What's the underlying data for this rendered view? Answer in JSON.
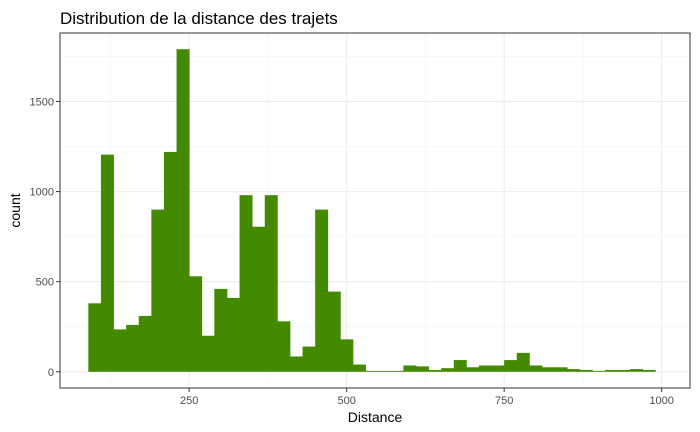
{
  "chart_data": {
    "type": "bar",
    "title": "Distribution de la distance des trajets",
    "xlabel": "Distance",
    "ylabel": "count",
    "bar_color": "#448a00",
    "xlim": [
      45,
      1045
    ],
    "ylim": [
      -90,
      1880
    ],
    "x_ticks": [
      250,
      500,
      750,
      1000
    ],
    "x_tick_labels": [
      "250",
      "500",
      "750",
      "1000"
    ],
    "y_ticks": [
      0,
      500,
      1000,
      1500
    ],
    "y_tick_labels": [
      "0",
      "500",
      "1000",
      "1500"
    ],
    "grid": true,
    "bin_width": 20,
    "bins_start": [
      90,
      110,
      130,
      150,
      170,
      190,
      210,
      230,
      250,
      270,
      290,
      310,
      330,
      350,
      370,
      390,
      410,
      430,
      450,
      470,
      490,
      510,
      530,
      550,
      570,
      590,
      610,
      630,
      650,
      670,
      690,
      710,
      730,
      750,
      770,
      790,
      810,
      830,
      850,
      870,
      890,
      910,
      930,
      950,
      970
    ],
    "values": [
      380,
      1205,
      235,
      260,
      310,
      900,
      1220,
      1790,
      530,
      200,
      460,
      410,
      980,
      805,
      980,
      280,
      85,
      140,
      900,
      445,
      180,
      40,
      5,
      5,
      5,
      35,
      30,
      10,
      20,
      65,
      25,
      35,
      35,
      65,
      105,
      35,
      25,
      25,
      15,
      10,
      5,
      10,
      10,
      15,
      10
    ]
  }
}
